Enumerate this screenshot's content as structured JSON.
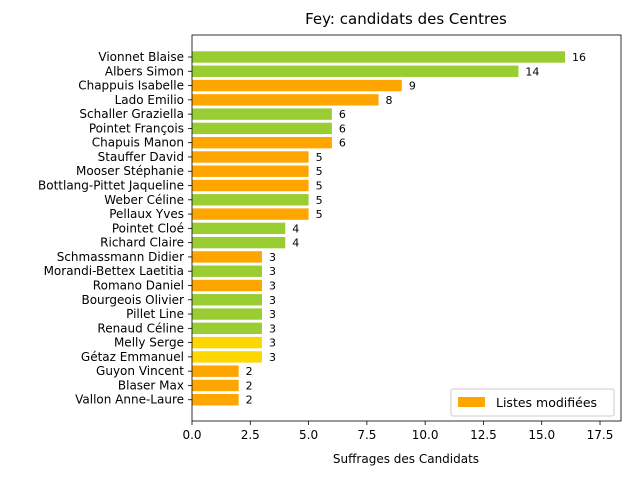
{
  "chart_data": {
    "type": "bar",
    "orientation": "horizontal",
    "title": "Fey: candidats des Centres",
    "xlabel": "Suffrages des Candidats",
    "ylabel": "",
    "xlim": [
      0,
      18.4
    ],
    "xticks": [
      "0.0",
      "2.5",
      "5.0",
      "7.5",
      "10.0",
      "12.5",
      "15.0",
      "17.5"
    ],
    "legend": {
      "label": "Listes modifiées",
      "color": "#ffa500",
      "position": "lower-right"
    },
    "colors": {
      "green": "#9acd32",
      "orange": "#ffa500",
      "yellow": "#ffd700"
    },
    "bars": [
      {
        "name": "Vionnet Blaise",
        "value": 16,
        "color": "#9acd32"
      },
      {
        "name": "Albers Simon",
        "value": 14,
        "color": "#9acd32"
      },
      {
        "name": "Chappuis Isabelle",
        "value": 9,
        "color": "#ffa500"
      },
      {
        "name": "Lado Emilio",
        "value": 8,
        "color": "#ffa500"
      },
      {
        "name": "Schaller Graziella",
        "value": 6,
        "color": "#9acd32"
      },
      {
        "name": "Pointet François",
        "value": 6,
        "color": "#9acd32"
      },
      {
        "name": "Chapuis Manon",
        "value": 6,
        "color": "#ffa500"
      },
      {
        "name": "Stauffer David",
        "value": 5,
        "color": "#ffa500"
      },
      {
        "name": "Mooser Stéphanie",
        "value": 5,
        "color": "#ffa500"
      },
      {
        "name": "Bottlang-Pittet Jaqueline",
        "value": 5,
        "color": "#ffa500"
      },
      {
        "name": "Weber Céline",
        "value": 5,
        "color": "#9acd32"
      },
      {
        "name": "Pellaux Yves",
        "value": 5,
        "color": "#ffa500"
      },
      {
        "name": "Pointet Cloé",
        "value": 4,
        "color": "#9acd32"
      },
      {
        "name": "Richard Claire",
        "value": 4,
        "color": "#9acd32"
      },
      {
        "name": "Schmassmann Didier",
        "value": 3,
        "color": "#ffa500"
      },
      {
        "name": "Morandi-Bettex Laetitia",
        "value": 3,
        "color": "#9acd32"
      },
      {
        "name": "Romano Daniel",
        "value": 3,
        "color": "#ffa500"
      },
      {
        "name": "Bourgeois Olivier",
        "value": 3,
        "color": "#9acd32"
      },
      {
        "name": "Pillet Line",
        "value": 3,
        "color": "#9acd32"
      },
      {
        "name": "Renaud Céline",
        "value": 3,
        "color": "#9acd32"
      },
      {
        "name": "Melly Serge",
        "value": 3,
        "color": "#ffd700"
      },
      {
        "name": "Gétaz Emmanuel",
        "value": 3,
        "color": "#ffd700"
      },
      {
        "name": "Guyon Vincent",
        "value": 2,
        "color": "#ffa500"
      },
      {
        "name": "Blaser Max",
        "value": 2,
        "color": "#ffa500"
      },
      {
        "name": "Vallon Anne-Laure",
        "value": 2,
        "color": "#ffa500"
      }
    ]
  }
}
